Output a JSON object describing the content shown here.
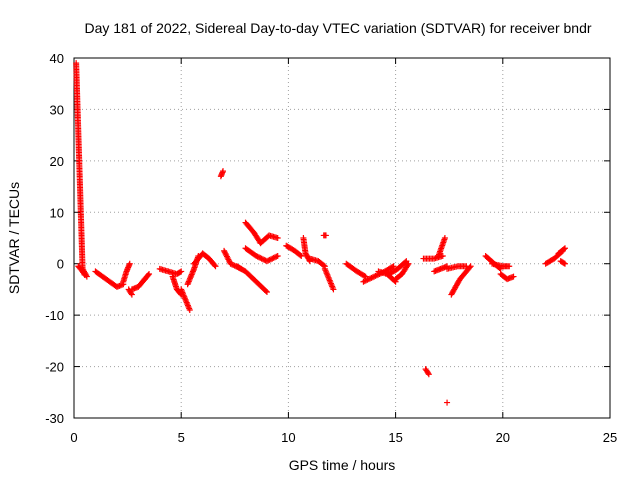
{
  "chart_data": {
    "type": "scatter",
    "title": "Day 181 of 2022, Sidereal Day-to-day VTEC variation (SDTVAR) for receiver bndr",
    "xlabel": "GPS time / hours",
    "ylabel": "SDTVAR / TECUs",
    "xlim": [
      0,
      25
    ],
    "ylim": [
      -30,
      40
    ],
    "xticks": [
      0,
      5,
      10,
      15,
      20,
      25
    ],
    "yticks": [
      -30,
      -20,
      -10,
      0,
      10,
      20,
      30,
      40
    ],
    "xtick_labels": [
      "0",
      "5",
      "10",
      "15",
      "20",
      "25"
    ],
    "ytick_labels": [
      "-30",
      "-20",
      "-10",
      "0",
      "10",
      "20",
      "30",
      "40"
    ],
    "grid": true,
    "marker": "+",
    "color": "#ff0000",
    "segments": [
      {
        "x": [
          0.1,
          0.4,
          0.6
        ],
        "y": [
          39,
          -1,
          -2.5
        ]
      },
      {
        "x": [
          0.2,
          0.35,
          0.5
        ],
        "y": [
          -0.5,
          -1.2,
          -2.2
        ]
      },
      {
        "x": [
          1.0,
          1.5,
          2.0,
          2.3
        ],
        "y": [
          -1.5,
          -3,
          -4.5,
          -4
        ]
      },
      {
        "x": [
          2.3,
          2.45,
          2.6
        ],
        "y": [
          -3.5,
          -1.5,
          0
        ]
      },
      {
        "x": [
          2.55,
          2.7
        ],
        "y": [
          -5,
          -6
        ]
      },
      {
        "x": [
          2.7,
          3.0,
          3.3
        ],
        "y": [
          -5,
          -4.5,
          -3
        ]
      },
      {
        "x": [
          3.3,
          3.5
        ],
        "y": [
          -3,
          -2
        ]
      },
      {
        "x": [
          4.0,
          4.4,
          4.8,
          5.0
        ],
        "y": [
          -1,
          -1.5,
          -2,
          -1.5
        ]
      },
      {
        "x": [
          4.6,
          4.8,
          5.0
        ],
        "y": [
          -2.5,
          -5,
          -6
        ]
      },
      {
        "x": [
          5.0,
          5.2,
          5.4
        ],
        "y": [
          -5,
          -7,
          -9
        ]
      },
      {
        "x": [
          5.3,
          5.6,
          5.8
        ],
        "y": [
          -4,
          -1,
          1.5
        ]
      },
      {
        "x": [
          5.6,
          6.0,
          6.3,
          6.6
        ],
        "y": [
          0,
          2,
          1,
          -0.5
        ]
      },
      {
        "x": [
          6.85,
          6.95
        ],
        "y": [
          17,
          18
        ]
      },
      {
        "x": [
          7.0,
          7.3,
          7.8
        ],
        "y": [
          2.5,
          0,
          -1
        ]
      },
      {
        "x": [
          7.6,
          8.0,
          8.5,
          9.0
        ],
        "y": [
          -0.5,
          -1.5,
          -3.5,
          -5.5
        ]
      },
      {
        "x": [
          8.0,
          8.5,
          9.0,
          9.5
        ],
        "y": [
          3,
          1.5,
          0.5,
          1.5
        ]
      },
      {
        "x": [
          8.0,
          8.4,
          8.7
        ],
        "y": [
          8,
          6,
          4
        ]
      },
      {
        "x": [
          8.7,
          9.1,
          9.5
        ],
        "y": [
          4,
          5.5,
          5
        ]
      },
      {
        "x": [
          9.9,
          10.3,
          10.6
        ],
        "y": [
          3.5,
          2.5,
          1.5
        ]
      },
      {
        "x": [
          10.7,
          10.8,
          11.0
        ],
        "y": [
          5,
          2,
          0.5
        ]
      },
      {
        "x": [
          11.0,
          11.4,
          11.7
        ],
        "y": [
          1,
          0.5,
          -0.5
        ]
      },
      {
        "x": [
          11.65,
          11.75
        ],
        "y": [
          5.5,
          5.5
        ]
      },
      {
        "x": [
          11.7,
          11.9,
          12.1
        ],
        "y": [
          -1,
          -3,
          -5
        ]
      },
      {
        "x": [
          12.7,
          13.2,
          13.6
        ],
        "y": [
          0,
          -1.5,
          -2.5
        ]
      },
      {
        "x": [
          13.5,
          14.0,
          14.5,
          14.9
        ],
        "y": [
          -3.5,
          -2.5,
          -1.5,
          -0.5
        ]
      },
      {
        "x": [
          14.2,
          14.6,
          15.0
        ],
        "y": [
          -1.5,
          -2,
          -3.5
        ]
      },
      {
        "x": [
          14.7,
          15.1,
          15.5
        ],
        "y": [
          -2,
          -1,
          0.5
        ]
      },
      {
        "x": [
          15.0,
          15.3,
          15.6
        ],
        "y": [
          -3,
          -2,
          0
        ]
      },
      {
        "x": [
          16.4,
          16.55
        ],
        "y": [
          -20.5,
          -21.5
        ]
      },
      {
        "x": [
          16.3,
          16.8,
          17.2
        ],
        "y": [
          1,
          1,
          1.5
        ]
      },
      {
        "x": [
          16.8,
          17.1,
          17.4
        ],
        "y": [
          -1.5,
          -1,
          -0.5
        ]
      },
      {
        "x": [
          17.0,
          17.3
        ],
        "y": [
          1.5,
          5
        ]
      },
      {
        "x": [
          17.4
        ],
        "y": [
          -27
        ]
      },
      {
        "x": [
          17.4,
          17.9,
          18.3
        ],
        "y": [
          -1,
          -0.5,
          -0.5
        ]
      },
      {
        "x": [
          17.6,
          18.0,
          18.5
        ],
        "y": [
          -6,
          -3,
          -0.5
        ]
      },
      {
        "x": [
          19.2,
          19.6,
          19.9
        ],
        "y": [
          1.5,
          0,
          -1
        ]
      },
      {
        "x": [
          19.5,
          20.0,
          20.3
        ],
        "y": [
          0,
          -0.5,
          -0.5
        ]
      },
      {
        "x": [
          19.9,
          20.2,
          20.5
        ],
        "y": [
          -2,
          -3,
          -2.5
        ]
      },
      {
        "x": [
          22.0,
          22.4,
          22.8
        ],
        "y": [
          0,
          1,
          2.5
        ]
      },
      {
        "x": [
          22.6,
          22.9
        ],
        "y": [
          2,
          3
        ]
      },
      {
        "x": [
          22.7,
          22.9
        ],
        "y": [
          0.5,
          0
        ]
      }
    ]
  }
}
